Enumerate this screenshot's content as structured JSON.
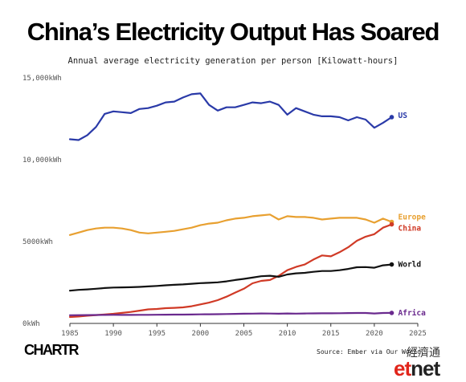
{
  "header": {
    "title": "China’s Electricity Output Has Soared",
    "subtitle": "Annual average electricity generation per person [Kilowatt-hours]"
  },
  "footer": {
    "logo": "CHARTR",
    "source": "Source: Ember via Our World"
  },
  "watermark": {
    "chinese": "經濟通",
    "brand_et": "et",
    "brand_net": "net"
  },
  "chart_data": {
    "type": "line",
    "title": "China’s Electricity Output Has Soared",
    "subtitle": "Annual average electricity generation per person [Kilowatt-hours]",
    "xlabel": "",
    "ylabel": "",
    "xlim": [
      1985,
      2025
    ],
    "ylim": [
      0,
      15000
    ],
    "x_ticks": [
      1985,
      1990,
      1995,
      2000,
      2005,
      2010,
      2015,
      2020,
      2025
    ],
    "y_ticks": [
      {
        "value": 0,
        "label": "0kWh"
      },
      {
        "value": 5000,
        "label": "5000kWh"
      },
      {
        "value": 10000,
        "label": "10,000kWh"
      },
      {
        "value": 15000,
        "label": "15,000kWh"
      }
    ],
    "grid": false,
    "legend": "direct labels at line ends",
    "x": [
      1985,
      1986,
      1987,
      1988,
      1989,
      1990,
      1991,
      1992,
      1993,
      1994,
      1995,
      1996,
      1997,
      1998,
      1999,
      2000,
      2001,
      2002,
      2003,
      2004,
      2005,
      2006,
      2007,
      2008,
      2009,
      2010,
      2011,
      2012,
      2013,
      2014,
      2015,
      2016,
      2017,
      2018,
      2019,
      2020,
      2021,
      2022
    ],
    "series": [
      {
        "name": "US",
        "color": "#2a3aa8",
        "values": [
          11250,
          11200,
          11500,
          12000,
          12800,
          12950,
          12900,
          12850,
          13100,
          13150,
          13300,
          13500,
          13550,
          13800,
          14000,
          14050,
          13350,
          13000,
          13200,
          13200,
          13350,
          13500,
          13450,
          13550,
          13350,
          12750,
          13150,
          12950,
          12750,
          12650,
          12650,
          12600,
          12400,
          12600,
          12450,
          11950,
          12250,
          12600
        ]
      },
      {
        "name": "Europe",
        "color": "#e8a030",
        "values": [
          5400,
          5550,
          5700,
          5800,
          5850,
          5850,
          5800,
          5700,
          5550,
          5500,
          5550,
          5600,
          5650,
          5750,
          5850,
          6000,
          6100,
          6150,
          6300,
          6400,
          6450,
          6550,
          6600,
          6650,
          6350,
          6550,
          6500,
          6500,
          6450,
          6350,
          6400,
          6450,
          6450,
          6450,
          6350,
          6150,
          6400,
          6200
        ]
      },
      {
        "name": "China",
        "color": "#d03a26",
        "values": [
          390,
          420,
          470,
          510,
          550,
          590,
          640,
          700,
          780,
          860,
          880,
          930,
          950,
          980,
          1050,
          1160,
          1270,
          1420,
          1630,
          1880,
          2120,
          2450,
          2600,
          2650,
          2900,
          3250,
          3450,
          3600,
          3900,
          4150,
          4100,
          4350,
          4650,
          5050,
          5300,
          5450,
          5850,
          6050
        ]
      },
      {
        "name": "World",
        "color": "#111111",
        "values": [
          2000,
          2050,
          2080,
          2120,
          2160,
          2190,
          2200,
          2210,
          2230,
          2260,
          2290,
          2330,
          2360,
          2380,
          2420,
          2460,
          2480,
          2510,
          2570,
          2650,
          2720,
          2800,
          2880,
          2910,
          2850,
          2990,
          3060,
          3090,
          3150,
          3200,
          3200,
          3250,
          3330,
          3430,
          3440,
          3400,
          3550,
          3600
        ]
      },
      {
        "name": "Africa",
        "color": "#6a2a8e",
        "values": [
          500,
          505,
          510,
          515,
          520,
          525,
          520,
          520,
          525,
          525,
          530,
          535,
          540,
          540,
          545,
          555,
          560,
          565,
          575,
          585,
          595,
          600,
          610,
          605,
          595,
          610,
          600,
          610,
          615,
          620,
          620,
          625,
          630,
          635,
          635,
          610,
          635,
          640
        ]
      }
    ]
  }
}
